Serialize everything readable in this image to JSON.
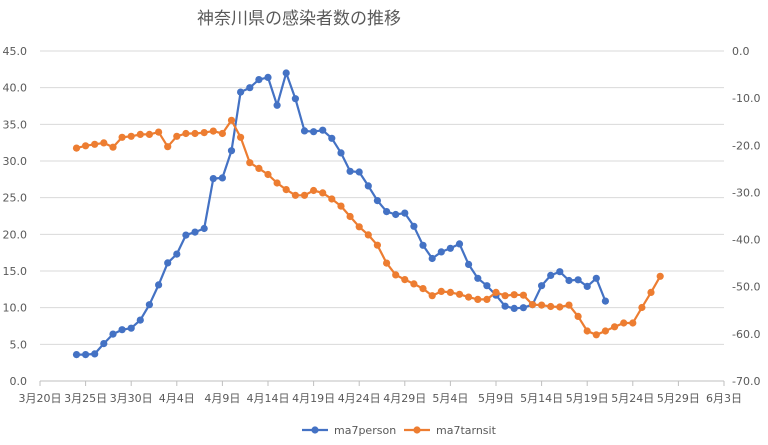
{
  "chart_data": {
    "type": "line",
    "title": "神奈川県の感染者数の推移",
    "x_axis": {
      "start": "2020-03-20",
      "end": "2020-06-03",
      "tick_labels": [
        "3月20日",
        "3月25日",
        "3月30日",
        "4月4日",
        "4月9日",
        "4月14日",
        "4月19日",
        "4月24日",
        "4月29日",
        "5月4日",
        "5月9日",
        "5月14日",
        "5月19日",
        "5月24日",
        "5月29日",
        "6月3日"
      ]
    },
    "y_left": {
      "range": [
        0,
        45
      ],
      "tick_labels": [
        "0.0",
        "5.0",
        "10.0",
        "15.0",
        "20.0",
        "25.0",
        "30.0",
        "35.0",
        "40.0",
        "45.0"
      ]
    },
    "y_right": {
      "range": [
        -70,
        0
      ],
      "tick_labels": [
        "-70.0",
        "-60.0",
        "-50.0",
        "-40.0",
        "-30.0",
        "-20.0",
        "-10.0",
        "0.0"
      ]
    },
    "grid": "horizontal",
    "legend_position": "bottom",
    "series": [
      {
        "name": "ma7person",
        "axis": "left",
        "color": "#4472C4",
        "x": [
          "2020-03-24",
          "2020-03-25",
          "2020-03-26",
          "2020-03-27",
          "2020-03-28",
          "2020-03-29",
          "2020-03-30",
          "2020-03-31",
          "2020-04-01",
          "2020-04-02",
          "2020-04-03",
          "2020-04-04",
          "2020-04-05",
          "2020-04-06",
          "2020-04-07",
          "2020-04-08",
          "2020-04-09",
          "2020-04-10",
          "2020-04-11",
          "2020-04-12",
          "2020-04-13",
          "2020-04-14",
          "2020-04-15",
          "2020-04-16",
          "2020-04-17",
          "2020-04-18",
          "2020-04-19",
          "2020-04-20",
          "2020-04-21",
          "2020-04-22",
          "2020-04-23",
          "2020-04-24",
          "2020-04-25",
          "2020-04-26",
          "2020-04-27",
          "2020-04-28",
          "2020-04-29",
          "2020-04-30",
          "2020-05-01",
          "2020-05-02",
          "2020-05-03",
          "2020-05-04",
          "2020-05-05",
          "2020-05-06",
          "2020-05-07",
          "2020-05-08",
          "2020-05-09",
          "2020-05-10",
          "2020-05-11",
          "2020-05-12",
          "2020-05-13",
          "2020-05-14",
          "2020-05-15",
          "2020-05-16",
          "2020-05-17",
          "2020-05-18",
          "2020-05-19",
          "2020-05-20",
          "2020-05-21"
        ],
        "values": [
          3.6,
          3.6,
          3.7,
          5.1,
          6.4,
          7.0,
          7.2,
          8.3,
          10.4,
          13.1,
          16.1,
          17.3,
          19.9,
          20.3,
          20.8,
          27.6,
          27.7,
          31.4,
          39.4,
          40.0,
          41.1,
          41.4,
          37.6,
          42.0,
          38.5,
          34.1,
          34.0,
          34.2,
          33.1,
          31.1,
          28.6,
          28.5,
          26.6,
          24.6,
          23.1,
          22.7,
          22.9,
          21.1,
          18.5,
          16.7,
          17.6,
          18.1,
          18.7,
          15.9,
          14.0,
          13.0,
          11.7,
          10.2,
          9.9,
          10.0,
          10.4,
          13.0,
          14.4,
          14.9,
          13.7,
          13.8,
          12.9,
          14.0,
          10.9
        ]
      },
      {
        "name": "ma7tarnsit",
        "axis": "right",
        "color": "#ED7D31",
        "x": [
          "2020-03-24",
          "2020-03-25",
          "2020-03-26",
          "2020-03-27",
          "2020-03-28",
          "2020-03-29",
          "2020-03-30",
          "2020-03-31",
          "2020-04-01",
          "2020-04-02",
          "2020-04-03",
          "2020-04-04",
          "2020-04-05",
          "2020-04-06",
          "2020-04-07",
          "2020-04-08",
          "2020-04-09",
          "2020-04-10",
          "2020-04-11",
          "2020-04-12",
          "2020-04-13",
          "2020-04-14",
          "2020-04-15",
          "2020-04-16",
          "2020-04-17",
          "2020-04-18",
          "2020-04-19",
          "2020-04-20",
          "2020-04-21",
          "2020-04-22",
          "2020-04-23",
          "2020-04-24",
          "2020-04-25",
          "2020-04-26",
          "2020-04-27",
          "2020-04-28",
          "2020-04-29",
          "2020-04-30",
          "2020-05-01",
          "2020-05-02",
          "2020-05-03",
          "2020-05-04",
          "2020-05-05",
          "2020-05-06",
          "2020-05-07",
          "2020-05-08",
          "2020-05-09",
          "2020-05-10",
          "2020-05-11",
          "2020-05-12",
          "2020-05-13",
          "2020-05-14",
          "2020-05-15",
          "2020-05-16",
          "2020-05-17",
          "2020-05-18",
          "2020-05-19",
          "2020-05-20",
          "2020-05-21",
          "2020-05-22",
          "2020-05-23",
          "2020-05-24",
          "2020-05-25",
          "2020-05-26",
          "2020-05-27"
        ],
        "values": [
          -20.6,
          -20.1,
          -19.8,
          -19.5,
          -20.4,
          -18.3,
          -18.1,
          -17.7,
          -17.7,
          -17.2,
          -20.3,
          -18.1,
          -17.5,
          -17.5,
          -17.3,
          -17.0,
          -17.5,
          -14.7,
          -18.3,
          -23.7,
          -24.9,
          -26.2,
          -28.0,
          -29.4,
          -30.6,
          -30.6,
          -29.6,
          -30.1,
          -31.4,
          -32.9,
          -35.1,
          -37.3,
          -39.0,
          -41.2,
          -45.0,
          -47.5,
          -48.5,
          -49.4,
          -50.4,
          -51.9,
          -51.0,
          -51.2,
          -51.6,
          -52.2,
          -52.7,
          -52.7,
          -51.2,
          -51.9,
          -51.7,
          -51.8,
          -53.8,
          -53.9,
          -54.2,
          -54.3,
          -53.9,
          -56.3,
          -59.4,
          -60.2,
          -59.4,
          -58.5,
          -57.7,
          -57.7,
          -54.4,
          -51.2,
          -47.8
        ]
      }
    ]
  }
}
